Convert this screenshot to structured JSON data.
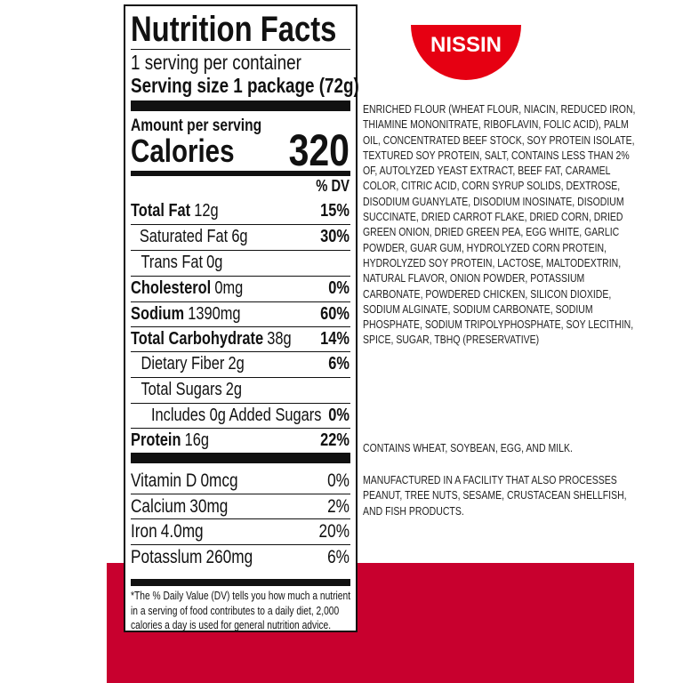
{
  "brand": {
    "logo_text": "NISSIN",
    "color": "#e60012"
  },
  "background_accent": "#c8002e",
  "nutrition_facts": {
    "title": "Nutrition Facts",
    "servings_per_container": "1 serving per container",
    "serving_size": "Serving size 1 package (72g)",
    "amount_per_serving": "Amount per serving",
    "calories_label": "Calories",
    "calories_value": "320",
    "dv_header": "% DV",
    "nutrients": [
      {
        "name": "Total Fat",
        "amount": "12g",
        "dv": "15%"
      },
      {
        "name": "Saturated Fat",
        "amount": "6g",
        "dv": "30%"
      },
      {
        "name": "Trans Fat",
        "amount": "0g",
        "dv": ""
      },
      {
        "name": "Cholesterol",
        "amount": "0mg",
        "dv": "0%"
      },
      {
        "name": "Sodium",
        "amount": "1390mg",
        "dv": "60%"
      },
      {
        "name": "Total Carbohydrate",
        "amount": "38g",
        "dv": "14%"
      },
      {
        "name": "Dietary Fiber",
        "amount": "2g",
        "dv": "6%"
      },
      {
        "name": "Total Sugars",
        "amount": "2g",
        "dv": ""
      },
      {
        "name": "Includes 0g Added Sugars",
        "amount": "",
        "dv": "0%"
      },
      {
        "name": "Protein",
        "amount": "16g",
        "dv": "22%"
      }
    ],
    "vitamins": [
      {
        "name": "Vitamin D",
        "amount": "0mcg",
        "dv": "0%"
      },
      {
        "name": "Calcium",
        "amount": "30mg",
        "dv": "2%"
      },
      {
        "name": "Iron",
        "amount": "4.0mg",
        "dv": "20%"
      },
      {
        "name": "Potasslum",
        "amount": "260mg",
        "dv": "6%"
      }
    ],
    "footnote": [
      "*The % Daily Value (DV) tells you how much a nutrient",
      "in a serving of food contributes to a daily diet, 2,000",
      "calories a day is used for general nutrition advice."
    ]
  },
  "ingredients": [
    "ENRICHED FLOUR (WHEAT FLOUR, NIACIN, REDUCED IRON,",
    "THIAMINE MONONITRATE, RIBOFLAVIN, FOLIC ACID), PALM",
    "OIL, CONCENTRATED BEEF STOCK, SOY PROTEIN ISOLATE,",
    "TEXTURED SOY PROTEIN, SALT, CONTAINS LESS THAN 2%",
    "OF, AUTOLYZED YEAST EXTRACT, BEEF FAT, CARAMEL",
    "COLOR, CITRIC ACID, CORN SYRUP SOLIDS, DEXTROSE,",
    "DISODIUM GUANYLATE, DISODIUM INOSINATE, DISODIUM",
    "SUCCINATE, DRIED CARROT FLAKE, DRIED CORN, DRIED",
    "GREEN ONION, DRIED GREEN PEA, EGG WHITE, GARLIC",
    "POWDER, GUAR GUM, HYDROLYZED CORN PROTEIN,",
    "HYDROLYZED SOY PROTEIN, LACTOSE, MALTODEXTRIN,",
    "NATURAL FLAVOR, ONION POWDER, POTASSIUM",
    "CARBONATE, POWDERED CHICKEN, SILICON DIOXIDE,",
    "SODIUM ALGINATE, SODIUM CARBONATE, SODIUM",
    "PHOSPHATE, SODIUM TRIPOLYPHOSPHATE, SOY LECITHIN,",
    "SPICE, SUGAR, TBHQ (PRESERVATIVE)"
  ],
  "allergens": [
    "CONTAINS WHEAT, SOYBEAN, EGG, AND MILK."
  ],
  "facility_statement": [
    "MANUFACTURED IN A FACILITY THAT ALSO PROCESSES",
    "PEANUT, TREE NUTS, SESAME, CRUSTACEAN SHELLFISH,",
    "AND FISH PRODUCTS."
  ]
}
